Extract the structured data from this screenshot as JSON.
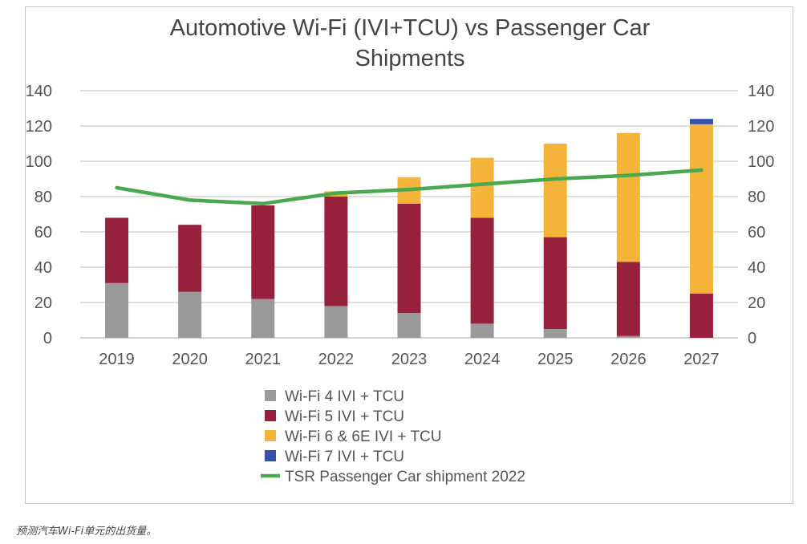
{
  "chart_data": {
    "type": "bar",
    "stacked": true,
    "title": "Automotive Wi-Fi (IVI+TCU) vs Passenger Car Shipments",
    "title_lines": [
      "Automotive Wi-Fi (IVI+TCU) vs Passenger Car",
      "Shipments"
    ],
    "categories": [
      "2019",
      "2020",
      "2021",
      "2022",
      "2023",
      "2024",
      "2025",
      "2026",
      "2027"
    ],
    "ylim": [
      0,
      140
    ],
    "yticks": [
      0,
      20,
      40,
      60,
      80,
      100,
      120,
      140
    ],
    "secondary_ylim": [
      0,
      140
    ],
    "grid": true,
    "legend_position": "bottom",
    "series": [
      {
        "name": "Wi-Fi 4 IVI + TCU",
        "kind": "bar",
        "color": "#9a9a9a",
        "values": [
          31,
          26,
          22,
          18,
          14,
          8,
          5,
          1,
          0
        ]
      },
      {
        "name": "Wi-Fi 5 IVI + TCU",
        "kind": "bar",
        "color": "#97213a",
        "values": [
          37,
          38,
          53,
          62,
          62,
          60,
          52,
          42,
          25
        ]
      },
      {
        "name": "Wi-Fi 6 & 6E IVI + TCU",
        "kind": "bar",
        "color": "#f4b43a",
        "values": [
          0,
          0,
          0,
          3,
          15,
          34,
          53,
          73,
          96
        ]
      },
      {
        "name": "Wi-Fi 7 IVI + TCU",
        "kind": "bar",
        "color": "#3550a8",
        "values": [
          0,
          0,
          0,
          0,
          0,
          0,
          0,
          0,
          3
        ]
      },
      {
        "name": "TSR Passenger Car shipment 2022",
        "kind": "line",
        "color": "#4aa84f",
        "values": [
          85,
          78,
          76,
          82,
          84,
          87,
          90,
          92,
          95
        ]
      }
    ]
  },
  "caption": "预测汽车Wi-Fi单元的出货量。"
}
